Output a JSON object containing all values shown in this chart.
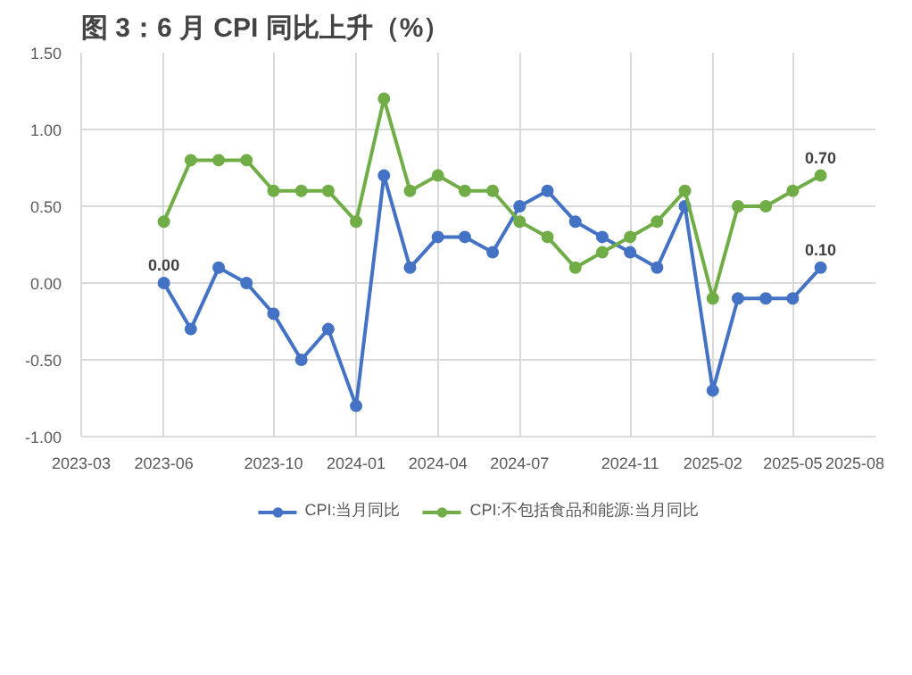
{
  "chart_data": {
    "type": "line",
    "title": "图 3：6 月 CPI 同比上升（%）",
    "x": [
      "2023-06",
      "2023-07",
      "2023-08",
      "2023-09",
      "2023-10",
      "2023-11",
      "2023-12",
      "2024-01",
      "2024-02",
      "2024-03",
      "2024-04",
      "2024-05",
      "2024-06",
      "2024-07",
      "2024-08",
      "2024-09",
      "2024-10",
      "2024-11",
      "2024-12",
      "2025-01",
      "2025-02",
      "2025-03",
      "2025-04",
      "2025-05",
      "2025-06"
    ],
    "series": [
      {
        "name": "CPI:当月同比",
        "color": "#4472c4",
        "values": [
          0.0,
          -0.3,
          0.1,
          0.0,
          -0.2,
          -0.5,
          -0.3,
          -0.8,
          0.7,
          0.1,
          0.3,
          0.3,
          0.2,
          0.5,
          0.6,
          0.4,
          0.3,
          0.2,
          0.1,
          0.5,
          -0.7,
          -0.1,
          -0.1,
          -0.1,
          0.1
        ],
        "value_labels": [
          "0.00",
          null,
          null,
          null,
          null,
          null,
          null,
          null,
          null,
          null,
          null,
          null,
          null,
          null,
          null,
          null,
          null,
          null,
          null,
          null,
          null,
          null,
          null,
          null,
          "0.10"
        ]
      },
      {
        "name": "CPI:不包括食品和能源:当月同比",
        "color": "#70ad47",
        "values": [
          0.4,
          0.8,
          0.8,
          0.8,
          0.6,
          0.6,
          0.6,
          0.4,
          1.2,
          0.6,
          0.7,
          0.6,
          0.6,
          0.4,
          0.3,
          0.1,
          0.2,
          0.3,
          0.4,
          0.6,
          -0.1,
          0.5,
          0.5,
          0.6,
          0.7
        ],
        "value_labels": [
          null,
          null,
          null,
          null,
          null,
          null,
          null,
          null,
          null,
          null,
          null,
          null,
          null,
          null,
          null,
          null,
          null,
          null,
          null,
          null,
          null,
          null,
          null,
          null,
          "0.70"
        ]
      }
    ],
    "xlim": [
      "2023-03-01",
      "2025-08-01"
    ],
    "xticks": [
      {
        "value": "2023-03-01",
        "label": "2023-03"
      },
      {
        "value": "2023-06-01",
        "label": "2023-06"
      },
      {
        "value": "2023-10-01",
        "label": "2023-10"
      },
      {
        "value": "2024-01-01",
        "label": "2024-01"
      },
      {
        "value": "2024-04-01",
        "label": "2024-04"
      },
      {
        "value": "2024-07-01",
        "label": "2024-07"
      },
      {
        "value": "2024-11-01",
        "label": "2024-11"
      },
      {
        "value": "2025-02-01",
        "label": "2025-02"
      },
      {
        "value": "2025-05-01",
        "label": "2025-05"
      },
      {
        "value": "2025-08-01",
        "label": "2025-08"
      }
    ],
    "ylim": [
      -1.0,
      1.5
    ],
    "yticks": [
      {
        "value": -1.0,
        "label": "-1.00"
      },
      {
        "value": -0.5,
        "label": "-0.50"
      },
      {
        "value": 0.0,
        "label": "0.00"
      },
      {
        "value": 0.5,
        "label": "0.50"
      },
      {
        "value": 1.0,
        "label": "1.00"
      },
      {
        "value": 1.5,
        "label": "1.50"
      }
    ],
    "grid": true,
    "legend": "bottom",
    "marker": "circle",
    "line_style": "solid"
  }
}
